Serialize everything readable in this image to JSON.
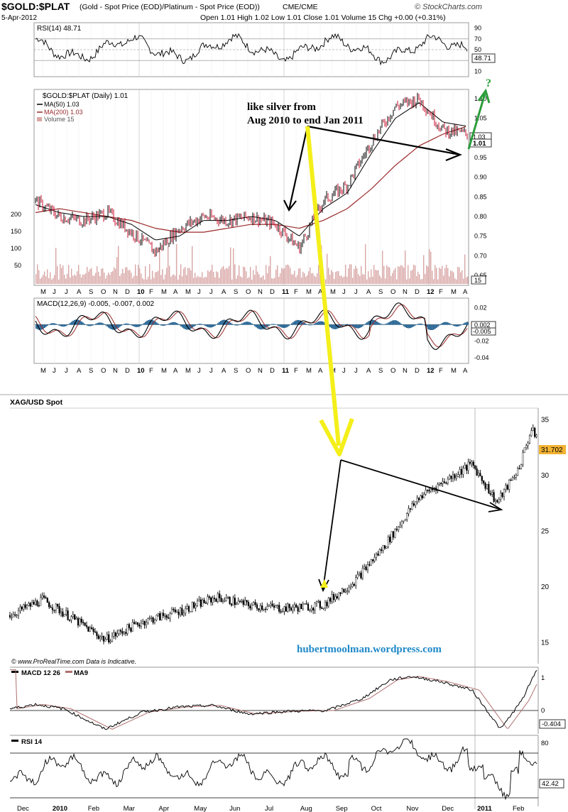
{
  "top_chart": {
    "symbol": "$GOLD:$PLAT",
    "description": "(Gold - Spot Price (EOD)/Platinum  - Spot Price (EOD))",
    "exchange": "CME/CME",
    "date": "5-Apr-2012",
    "ohlc_text": "Open 1.01  High 1.02  Low 1.01  Close 1.01  Volume 15  Chg +0.00 (+0.31%)",
    "brand": "© StockCharts.com",
    "rsi_label": "RSI(14) 48.71",
    "rsi_value_badge": "48.71",
    "rsi_ticks": [
      "90",
      "70",
      "50",
      "30",
      "10"
    ],
    "price_legend": "$GOLD:$PLAT (Daily) 1.01",
    "ma50_legend": "MA(50) 1.03",
    "ma200_legend": "MA(200) 1.03",
    "volume_legend": "Volume 15",
    "price_ticks": [
      "1.10",
      "1.05",
      "1.00",
      "0.95",
      "0.90",
      "0.85",
      "0.80",
      "0.75",
      "0.70",
      "0.65"
    ],
    "price_badge_1": "1.03",
    "price_badge_2": "1.01",
    "volume_ticks": [
      "200",
      "150",
      "100",
      "50"
    ],
    "volume_badge": "15",
    "macd_label": "MACD(12,26,9) -0.005, -0.007, 0.002",
    "macd_ticks": [
      "0.02",
      "0.00",
      "-0.02",
      "-0.04"
    ],
    "macd_badge_1": "0.002",
    "macd_badge_2": "-0.005",
    "months": [
      "M",
      "J",
      "J",
      "A",
      "S",
      "O",
      "N",
      "D",
      "10",
      "F",
      "M",
      "A",
      "M",
      "J",
      "J",
      "A",
      "S",
      "O",
      "N",
      "D",
      "11",
      "F",
      "M",
      "A",
      "M",
      "J",
      "J",
      "A",
      "S",
      "O",
      "N",
      "D",
      "12",
      "F",
      "M",
      "A"
    ],
    "annotation": "like silver from\nAug 2010 to end Jan 2011",
    "question_mark": "?",
    "colors": {
      "ma200": "#9b2a2a",
      "volume": "#d9a6a6",
      "macd_hist": "#1f5f8f",
      "arrow_green": "#2a9d3a",
      "arrow_yellow": "#f4ef1a"
    }
  },
  "bottom_chart": {
    "title": "XAG/USD Spot",
    "price_ticks": [
      "35",
      "30",
      "25",
      "20",
      "15"
    ],
    "last_price": "31.702",
    "watermark": "hubertmoolman.wordpress.com",
    "source": "©  www.ProRealTime.com     Data is Indicative.",
    "macd_label": "MACD 12 26",
    "ma9_label": "MA9",
    "macd_ticks": [
      "1",
      "0"
    ],
    "macd_badge": "-0.404",
    "rsi_label": "RSI 14",
    "rsi_tick": "80",
    "rsi_badge": "42.42",
    "months": [
      "Dec",
      "2010",
      "Feb",
      "Mar",
      "Apr",
      "May",
      "Jun",
      "Jul",
      "Aug",
      "Sep",
      "Oct",
      "Nov",
      "Dec",
      "2011",
      "Feb"
    ],
    "colors": {
      "last_price_bg": "#f2b233",
      "watermark": "#1e88c8",
      "ma9": "#b07070"
    }
  },
  "chart_data": [
    {
      "type": "line",
      "title": "$GOLD:$PLAT (Daily)",
      "x": [
        "May 2009",
        "Jul 2009",
        "Sep 2009",
        "Nov 2009",
        "Jan 2010",
        "Mar 2010",
        "May 2010",
        "Jul 2010",
        "Sep 2010",
        "Nov 2010",
        "Jan 2011",
        "Mar 2011",
        "May 2011",
        "Jul 2011",
        "Sep 2011",
        "Nov 2011",
        "Jan 2012",
        "Mar 2012",
        "Apr 2012"
      ],
      "series": [
        {
          "name": "$GOLD:$PLAT",
          "values": [
            0.84,
            0.8,
            0.79,
            0.81,
            0.76,
            0.71,
            0.77,
            0.8,
            0.79,
            0.8,
            0.78,
            0.72,
            0.84,
            0.88,
            0.99,
            1.08,
            1.1,
            1.02,
            1.01
          ]
        },
        {
          "name": "MA(50)",
          "values": [
            0.83,
            0.81,
            0.8,
            0.8,
            0.78,
            0.74,
            0.75,
            0.79,
            0.79,
            0.8,
            0.79,
            0.75,
            0.82,
            0.86,
            0.96,
            1.05,
            1.09,
            1.04,
            1.03
          ]
        },
        {
          "name": "MA(200)",
          "values": [
            0.81,
            0.82,
            0.81,
            0.8,
            0.79,
            0.77,
            0.76,
            0.76,
            0.77,
            0.78,
            0.78,
            0.77,
            0.79,
            0.82,
            0.87,
            0.93,
            0.98,
            1.01,
            1.03
          ]
        }
      ],
      "ylim": [
        0.65,
        1.12
      ]
    },
    {
      "type": "line",
      "title": "XAG/USD Spot",
      "x": [
        "Dec 2009",
        "Jan 2010",
        "Feb 2010",
        "Mar 2010",
        "Apr 2010",
        "May 2010",
        "Jun 2010",
        "Jul 2010",
        "Aug 2010",
        "Sep 2010",
        "Oct 2010",
        "Nov 2010",
        "Dec 2010",
        "Jan 2011",
        "Feb 2011",
        "Mar 2011"
      ],
      "series": [
        {
          "name": "XAG/USD Spot",
          "values": [
            17.5,
            18.5,
            15.5,
            16.8,
            17.8,
            18.7,
            18.4,
            18.0,
            18.3,
            20.5,
            23.5,
            27.0,
            29.5,
            27.5,
            30.5,
            34.0
          ]
        }
      ],
      "ylim": [
        14,
        36
      ]
    }
  ]
}
